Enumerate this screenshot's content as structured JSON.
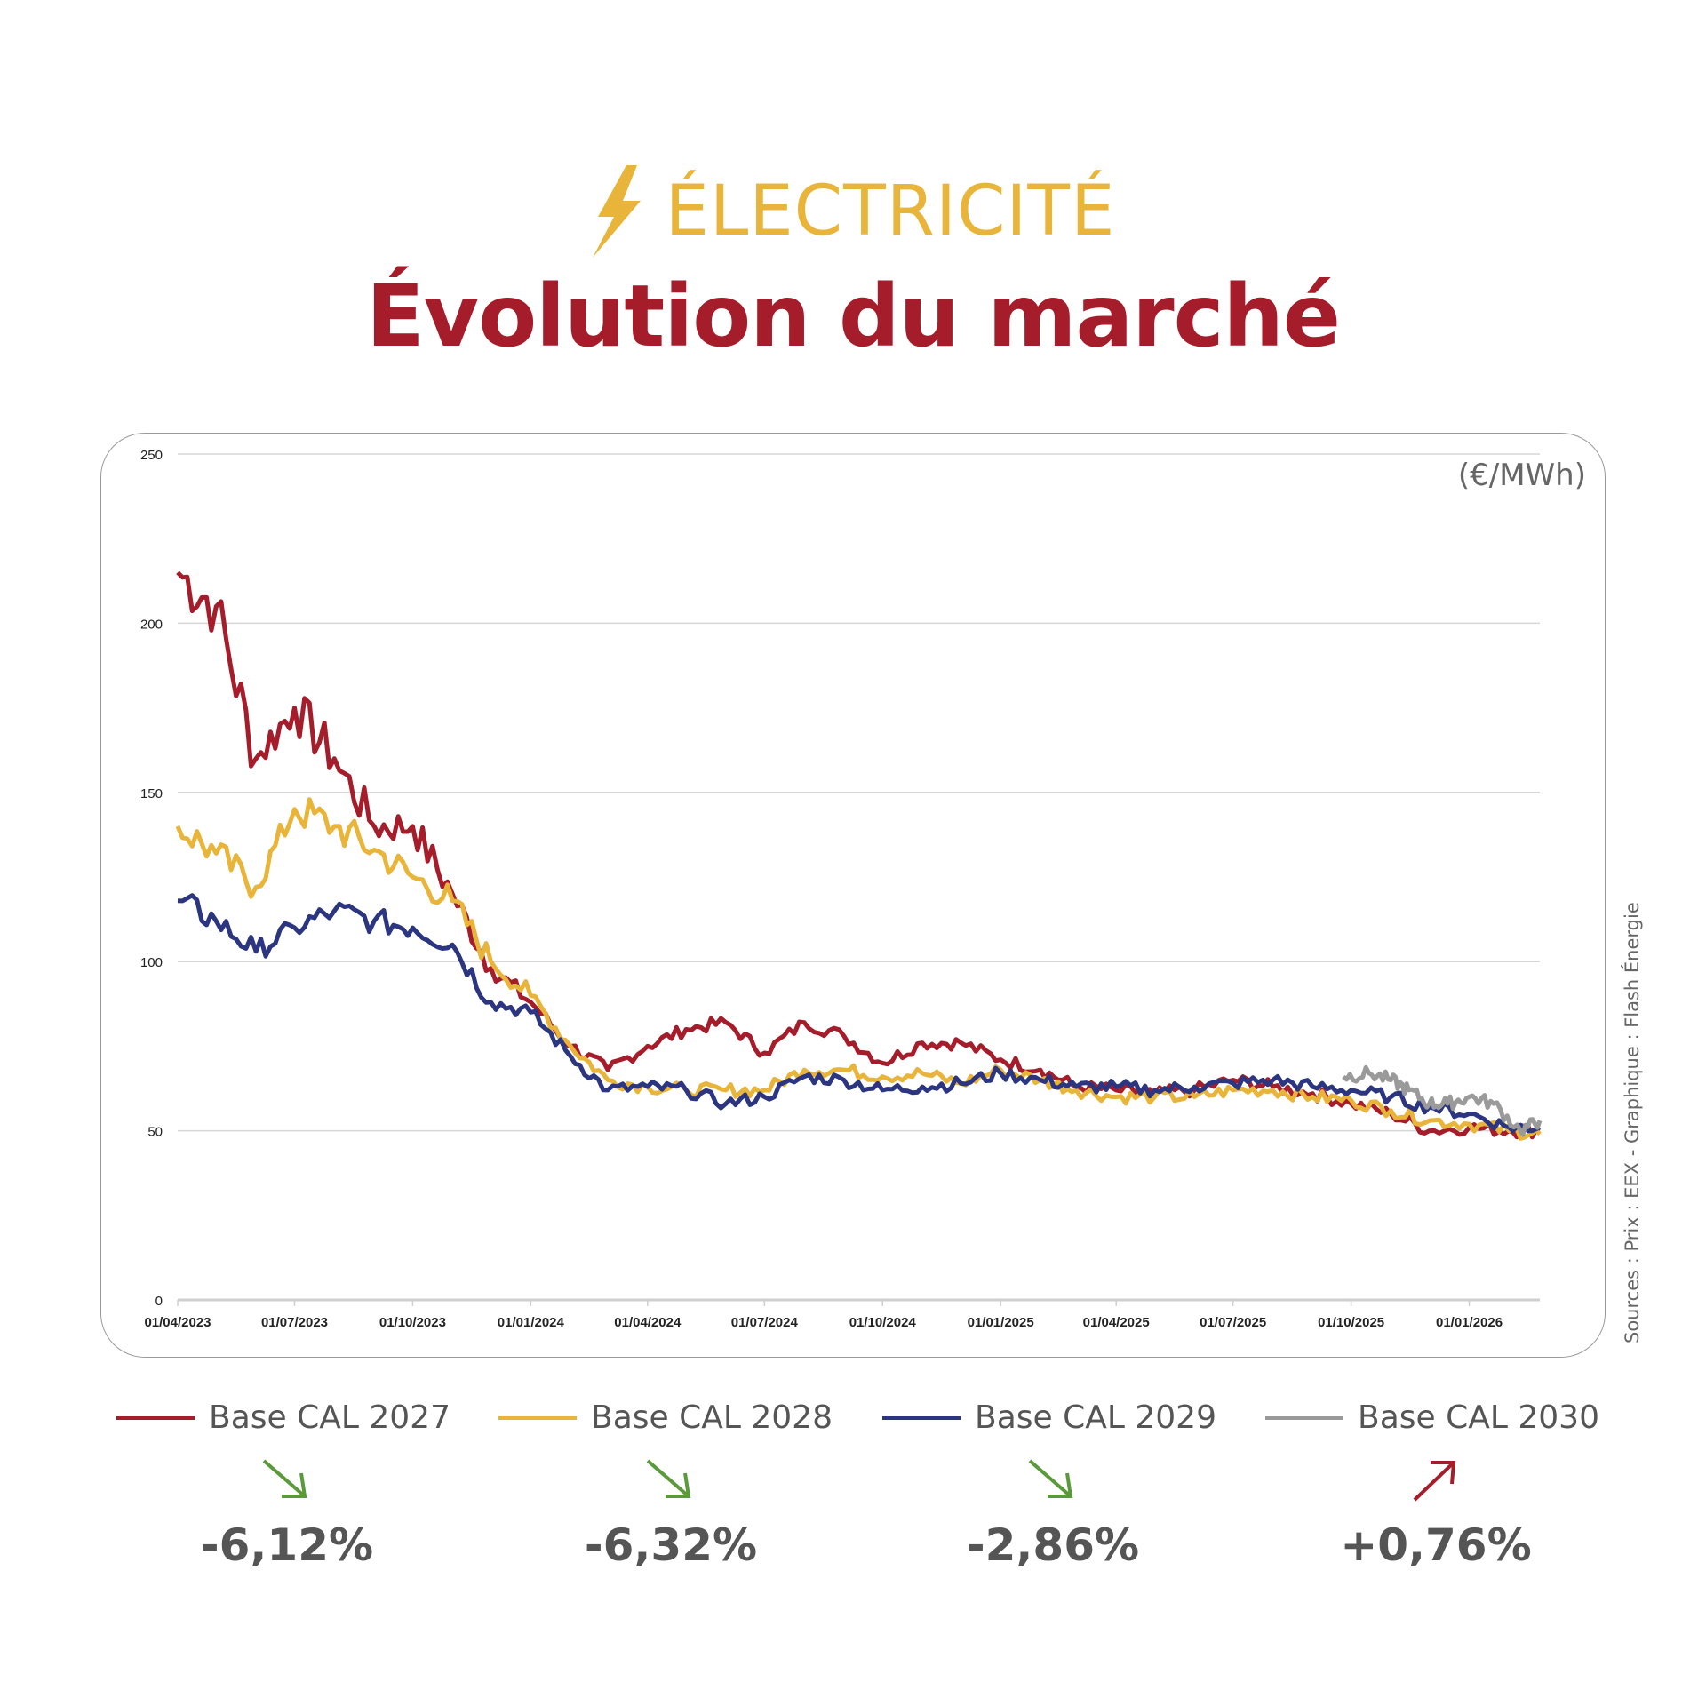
{
  "header": {
    "icon": "lightning-bolt-icon",
    "category": "ÉLECTRICITÉ",
    "title": "Évolution du marché"
  },
  "colors": {
    "category": "#e8b53a",
    "title": "#a51d2a",
    "up": "#a51d2a",
    "down": "#5a9a3a"
  },
  "chart_data": {
    "type": "line",
    "unit_label": "(€/MWh)",
    "source": "Sources : Prix : EEX - Graphique : Flash Énergie",
    "ylim": [
      0,
      250
    ],
    "yticks": [
      0,
      50,
      100,
      150,
      200,
      250
    ],
    "xlim": [
      "2023-04-01",
      "2026-02-25"
    ],
    "xticks": [
      "01/04/2023",
      "01/07/2023",
      "01/10/2023",
      "01/01/2024",
      "01/04/2024",
      "01/07/2024",
      "01/10/2024",
      "01/01/2025",
      "01/04/2025",
      "01/07/2025",
      "01/10/2025",
      "01/01/2026"
    ],
    "grid": true,
    "legend_position": "bottom",
    "x": [
      "2023-04-01",
      "2023-05-01",
      "2023-06-01",
      "2023-07-01",
      "2023-08-01",
      "2023-09-01",
      "2023-10-01",
      "2023-11-01",
      "2023-12-01",
      "2024-01-01",
      "2024-02-01",
      "2024-03-01",
      "2024-04-01",
      "2024-05-01",
      "2024-06-01",
      "2024-07-01",
      "2024-08-01",
      "2024-09-01",
      "2024-10-01",
      "2024-11-01",
      "2024-12-01",
      "2025-01-01",
      "2025-02-01",
      "2025-03-01",
      "2025-04-01",
      "2025-05-01",
      "2025-06-01",
      "2025-07-01",
      "2025-08-01",
      "2025-09-01",
      "2025-10-01",
      "2025-11-01",
      "2025-12-01",
      "2026-01-01",
      "2026-02-01",
      "2026-02-25"
    ],
    "series": [
      {
        "name": "Base CAL 2027",
        "color": "#a51d2a",
        "values": [
          215,
          205,
          160,
          175,
          160,
          140,
          140,
          120,
          98,
          88,
          75,
          68,
          75,
          80,
          82,
          73,
          82,
          78,
          70,
          76,
          76,
          71,
          68,
          63,
          62,
          61,
          62,
          65,
          63,
          61,
          58,
          55,
          50,
          51,
          50,
          50
        ]
      },
      {
        "name": "Base CAL 2028",
        "color": "#e8b53a",
        "values": [
          140,
          132,
          122,
          145,
          140,
          133,
          125,
          118,
          100,
          90,
          75,
          65,
          63,
          62,
          62,
          62,
          68,
          68,
          66,
          67,
          64,
          68,
          65,
          62,
          60,
          60,
          60,
          62,
          62,
          60,
          59,
          56,
          53,
          52,
          50,
          49
        ]
      },
      {
        "name": "Base CAL 2029",
        "color": "#2b3580",
        "values": [
          118,
          112,
          103,
          110,
          115,
          112,
          110,
          105,
          88,
          85,
          72,
          62,
          63,
          62,
          58,
          60,
          66,
          65,
          62,
          63,
          64,
          67,
          65,
          63,
          63,
          62,
          63,
          64,
          65,
          63,
          62,
          60,
          57,
          55,
          51,
          51
        ]
      },
      {
        "name": "Base CAL 2030",
        "color": "#9a9a9a",
        "x": [
          "2025-09-25",
          "2025-10-15",
          "2025-11-01",
          "2025-11-15",
          "2025-12-01",
          "2025-12-15",
          "2026-01-01",
          "2026-01-20",
          "2026-02-10",
          "2026-02-25"
        ],
        "values": [
          66,
          67,
          65,
          62,
          58,
          58,
          60,
          58,
          50,
          53
        ]
      }
    ]
  },
  "changes": [
    {
      "series": "Base CAL 2027",
      "direction": "down",
      "icon": "arrow-down-right-icon",
      "value": "-6,12%"
    },
    {
      "series": "Base CAL 2028",
      "direction": "down",
      "icon": "arrow-down-right-icon",
      "value": "-6,32%"
    },
    {
      "series": "Base CAL 2029",
      "direction": "down",
      "icon": "arrow-down-right-icon",
      "value": "-2,86%"
    },
    {
      "series": "Base CAL 2030",
      "direction": "up",
      "icon": "arrow-up-right-icon",
      "value": "+0,76%"
    }
  ]
}
